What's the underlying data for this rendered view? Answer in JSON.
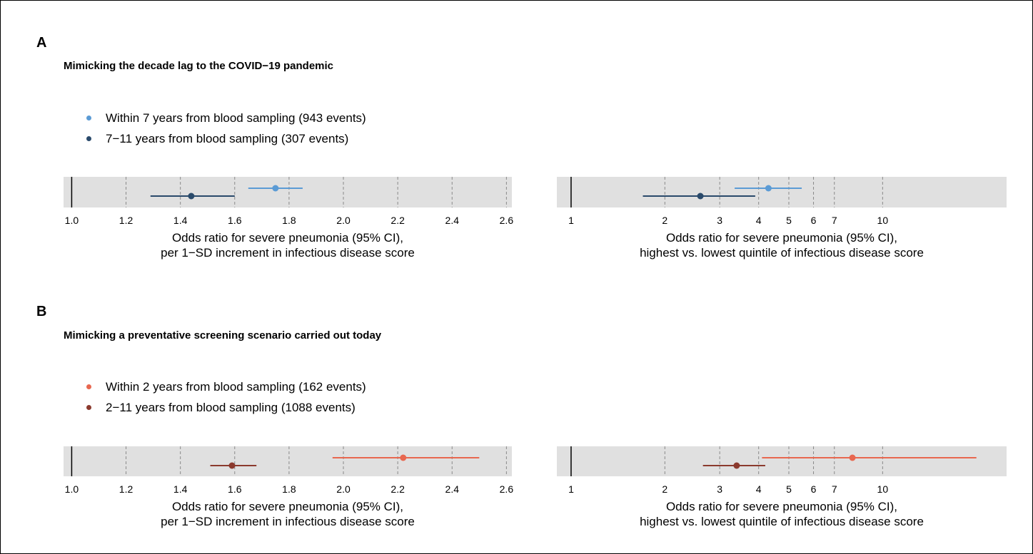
{
  "panels": [
    {
      "letter": "A",
      "title": "Mimicking the decade lag to the COVID−19 pandemic",
      "legend": [
        {
          "label": "Within 7 years from blood sampling (943 events)",
          "color": "#5b9bd5"
        },
        {
          "label": "7−11 years from blood sampling (307 events)",
          "color": "#2a4a6b"
        }
      ]
    },
    {
      "letter": "B",
      "title": "Mimicking a preventative screening scenario carried out today",
      "legend": [
        {
          "label": "Within 2 years from blood sampling (162 events)",
          "color": "#e8674f"
        },
        {
          "label": "2−11 years from blood sampling (1088 events)",
          "color": "#8b3a2e"
        }
      ]
    }
  ],
  "chart_data": [
    {
      "type": "scatter",
      "panel": "A",
      "scale": "linear",
      "xlim": [
        0.97,
        2.62
      ],
      "ticks": [
        1.0,
        1.2,
        1.4,
        1.6,
        1.8,
        2.0,
        2.2,
        2.4,
        2.6
      ],
      "tick_labels": [
        "1.0",
        "1.2",
        "1.4",
        "1.6",
        "1.8",
        "2.0",
        "2.2",
        "2.4",
        "2.6"
      ],
      "reference_line": 1.0,
      "xlabel": [
        "Odds ratio for severe pneumonia (95% CI),",
        "per 1−SD increment in infectious disease score"
      ],
      "series": [
        {
          "name": "Within 7 years from blood sampling (943 events)",
          "estimate": 1.75,
          "lower": 1.65,
          "upper": 1.85
        },
        {
          "name": "7−11 years from blood sampling (307 events)",
          "estimate": 1.44,
          "lower": 1.29,
          "upper": 1.6
        }
      ]
    },
    {
      "type": "scatter",
      "panel": "A",
      "scale": "log",
      "xlim": [
        0.9,
        25
      ],
      "ticks": [
        1,
        2,
        3,
        4,
        5,
        6,
        7,
        10
      ],
      "tick_labels": [
        "1",
        "2",
        "3",
        "4",
        "5",
        "6",
        "7",
        "10"
      ],
      "reference_line": 1,
      "xlabel": [
        "Odds ratio for severe pneumonia (95% CI),",
        "highest vs. lowest quintile of infectious disease score"
      ],
      "series": [
        {
          "name": "Within 7 years from blood sampling (943 events)",
          "estimate": 4.3,
          "lower": 3.35,
          "upper": 5.5
        },
        {
          "name": "7−11 years from blood sampling (307 events)",
          "estimate": 2.6,
          "lower": 1.7,
          "upper": 3.9
        }
      ]
    },
    {
      "type": "scatter",
      "panel": "B",
      "scale": "linear",
      "xlim": [
        0.97,
        2.62
      ],
      "ticks": [
        1.0,
        1.2,
        1.4,
        1.6,
        1.8,
        2.0,
        2.2,
        2.4,
        2.6
      ],
      "tick_labels": [
        "1.0",
        "1.2",
        "1.4",
        "1.6",
        "1.8",
        "2.0",
        "2.2",
        "2.4",
        "2.6"
      ],
      "reference_line": 1.0,
      "xlabel": [
        "Odds ratio for severe pneumonia (95% CI),",
        "per 1−SD increment in infectious disease score"
      ],
      "series": [
        {
          "name": "Within 2 years from blood sampling (162 events)",
          "estimate": 2.22,
          "lower": 1.96,
          "upper": 2.5
        },
        {
          "name": "2−11 years from blood sampling (1088 events)",
          "estimate": 1.59,
          "lower": 1.51,
          "upper": 1.68
        }
      ]
    },
    {
      "type": "scatter",
      "panel": "B",
      "scale": "log",
      "xlim": [
        0.9,
        25
      ],
      "ticks": [
        1,
        2,
        3,
        4,
        5,
        6,
        7,
        10
      ],
      "tick_labels": [
        "1",
        "2",
        "3",
        "4",
        "5",
        "6",
        "7",
        "10"
      ],
      "reference_line": 1,
      "xlabel": [
        "Odds ratio for severe pneumonia (95% CI),",
        "highest vs. lowest quintile of infectious disease score"
      ],
      "series": [
        {
          "name": "Within 2 years from blood sampling (162 events)",
          "estimate": 8.0,
          "lower": 4.1,
          "upper": 20.0
        },
        {
          "name": "2−11 years from blood sampling (1088 events)",
          "estimate": 3.4,
          "lower": 2.65,
          "upper": 4.2
        }
      ]
    }
  ]
}
